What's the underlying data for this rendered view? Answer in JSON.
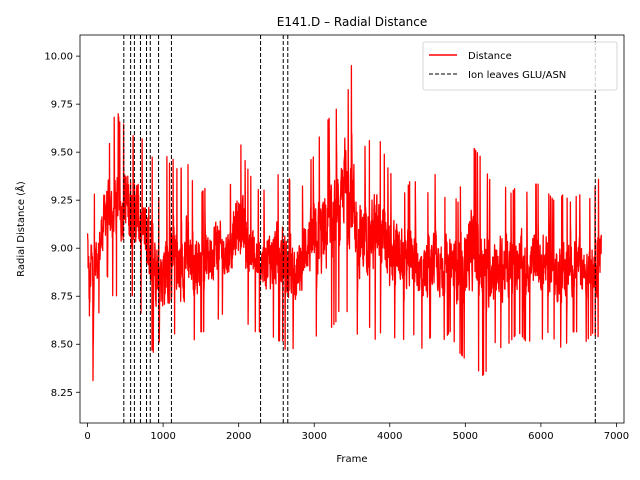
{
  "chart_data": {
    "type": "line",
    "title": "E141.D – Radial Distance",
    "xlabel": "Frame",
    "ylabel": "Radial Distance (Å)",
    "xlim": [
      -100,
      7100
    ],
    "ylim": [
      8.09,
      10.11
    ],
    "xticks": [
      0,
      1000,
      2000,
      3000,
      4000,
      5000,
      6000,
      7000
    ],
    "yticks": [
      8.25,
      8.5,
      8.75,
      9.0,
      9.25,
      9.5,
      9.75,
      10.0
    ],
    "xtick_labels": [
      "0",
      "1000",
      "2000",
      "3000",
      "4000",
      "5000",
      "6000",
      "7000"
    ],
    "ytick_labels": [
      "8.25",
      "8.50",
      "8.75",
      "9.00",
      "9.25",
      "9.50",
      "9.75",
      "10.00"
    ],
    "grid": false,
    "legend_position": "top-right",
    "series": [
      {
        "name": "Distance",
        "color": "#ff0000",
        "style": "solid",
        "x": [
          0,
          25,
          50,
          75,
          100,
          150,
          200,
          250,
          300,
          350,
          400,
          450,
          500,
          550,
          600,
          650,
          700,
          750,
          800,
          850,
          900,
          950,
          1000,
          1050,
          1100,
          1150,
          1200,
          1300,
          1400,
          1500,
          1600,
          1700,
          1800,
          1900,
          2000,
          2100,
          2200,
          2300,
          2400,
          2500,
          2600,
          2650,
          2700,
          2800,
          2900,
          3000,
          3100,
          3200,
          3300,
          3350,
          3400,
          3450,
          3500,
          3550,
          3600,
          3700,
          3800,
          3900,
          4000,
          4100,
          4200,
          4300,
          4400,
          4500,
          4600,
          4700,
          4800,
          4900,
          5000,
          5100,
          5200,
          5300,
          5400,
          5500,
          5600,
          5700,
          5800,
          5900,
          6000,
          6100,
          6200,
          6300,
          6400,
          6500,
          6600,
          6700,
          6750,
          6800
        ],
        "upper": [
          9.39,
          9.2,
          9.33,
          9.37,
          9.25,
          9.3,
          9.47,
          9.6,
          9.55,
          9.7,
          9.73,
          9.62,
          9.7,
          9.77,
          9.6,
          9.67,
          9.62,
          9.55,
          9.55,
          9.5,
          9.45,
          9.25,
          9.45,
          9.5,
          9.45,
          9.5,
          9.4,
          9.5,
          9.35,
          9.3,
          9.35,
          9.45,
          9.3,
          9.35,
          9.6,
          9.45,
          9.35,
          9.3,
          9.35,
          9.4,
          9.4,
          9.4,
          9.35,
          9.25,
          9.45,
          9.5,
          9.65,
          9.7,
          9.75,
          9.62,
          10.02,
          9.85,
          10.0,
          9.75,
          9.55,
          9.55,
          9.65,
          9.55,
          9.4,
          9.45,
          9.3,
          9.4,
          9.3,
          9.3,
          9.4,
          9.25,
          9.35,
          9.25,
          9.5,
          9.55,
          9.5,
          9.4,
          9.3,
          9.35,
          9.3,
          9.35,
          9.3,
          9.35,
          9.35,
          9.3,
          9.25,
          9.3,
          9.25,
          9.3,
          9.25,
          9.3,
          9.4,
          9.3
        ],
        "lower": [
          8.7,
          8.25,
          8.55,
          8.26,
          8.6,
          8.65,
          8.75,
          8.85,
          8.8,
          8.7,
          8.75,
          8.75,
          8.8,
          8.65,
          8.75,
          8.7,
          8.65,
          8.6,
          8.55,
          8.45,
          8.42,
          8.5,
          8.3,
          8.35,
          8.32,
          8.55,
          8.25,
          8.45,
          8.5,
          8.55,
          8.55,
          8.6,
          8.65,
          8.65,
          8.7,
          8.6,
          8.55,
          8.55,
          8.55,
          8.5,
          8.5,
          8.35,
          8.45,
          8.5,
          8.6,
          8.55,
          8.45,
          8.55,
          8.6,
          8.7,
          8.75,
          8.6,
          8.65,
          8.55,
          8.5,
          8.6,
          8.5,
          8.55,
          8.45,
          8.55,
          8.5,
          8.55,
          8.45,
          8.5,
          8.55,
          8.5,
          8.55,
          8.45,
          8.4,
          8.45,
          8.3,
          8.35,
          8.5,
          8.45,
          8.5,
          8.55,
          8.5,
          8.5,
          8.5,
          8.55,
          8.5,
          8.45,
          8.55,
          8.55,
          8.5,
          8.55,
          8.5,
          8.65
        ]
      }
    ],
    "vlines": {
      "name": "Ion leaves GLU/ASN",
      "color": "#000000",
      "style": "dashed",
      "x": [
        480,
        570,
        620,
        700,
        780,
        830,
        940,
        1110,
        2290,
        2590,
        2650,
        6720
      ]
    }
  }
}
